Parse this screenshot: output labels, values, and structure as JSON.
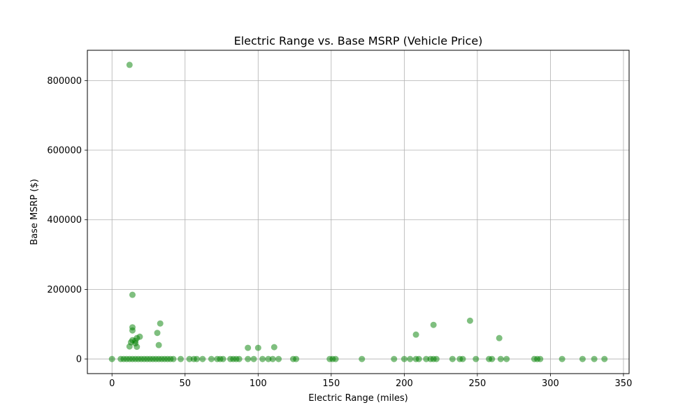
{
  "chart_data": {
    "type": "scatter",
    "title": "Electric Range vs. Base MSRP (Vehicle Price)",
    "xlabel": "Electric Range (miles)",
    "ylabel": "Base MSRP ($)",
    "xlim": [
      -16.85,
      353.85
    ],
    "ylim": [
      -42000,
      887000
    ],
    "xticks": [
      0,
      50,
      100,
      150,
      200,
      250,
      300,
      350
    ],
    "yticks": [
      0,
      200000,
      400000,
      600000,
      800000
    ],
    "grid": true,
    "legend": "none",
    "marker_color": "#008000",
    "marker_alpha": 0.5,
    "points": [
      {
        "x": 12,
        "y": 845000
      },
      {
        "x": 14,
        "y": 184400
      },
      {
        "x": 33,
        "y": 102000
      },
      {
        "x": 14,
        "y": 91000
      },
      {
        "x": 14,
        "y": 82000
      },
      {
        "x": 31,
        "y": 75000
      },
      {
        "x": 19,
        "y": 64000
      },
      {
        "x": 17,
        "y": 60000
      },
      {
        "x": 14,
        "y": 54000
      },
      {
        "x": 16,
        "y": 52000
      },
      {
        "x": 13,
        "y": 48000
      },
      {
        "x": 16,
        "y": 45000
      },
      {
        "x": 32,
        "y": 40000
      },
      {
        "x": 12,
        "y": 36000
      },
      {
        "x": 17,
        "y": 35000
      },
      {
        "x": 93,
        "y": 32000
      },
      {
        "x": 100,
        "y": 32000
      },
      {
        "x": 111,
        "y": 34000
      },
      {
        "x": 208,
        "y": 70000
      },
      {
        "x": 220,
        "y": 98000
      },
      {
        "x": 245,
        "y": 110000
      },
      {
        "x": 265,
        "y": 60000
      },
      {
        "x": 0,
        "y": 0
      },
      {
        "x": 6,
        "y": 0
      },
      {
        "x": 8,
        "y": 0
      },
      {
        "x": 10,
        "y": 0
      },
      {
        "x": 12,
        "y": 0
      },
      {
        "x": 14,
        "y": 0
      },
      {
        "x": 16,
        "y": 0
      },
      {
        "x": 18,
        "y": 0
      },
      {
        "x": 20,
        "y": 0
      },
      {
        "x": 22,
        "y": 0
      },
      {
        "x": 24,
        "y": 0
      },
      {
        "x": 26,
        "y": 0
      },
      {
        "x": 28,
        "y": 0
      },
      {
        "x": 30,
        "y": 0
      },
      {
        "x": 32,
        "y": 0
      },
      {
        "x": 34,
        "y": 0
      },
      {
        "x": 36,
        "y": 0
      },
      {
        "x": 38,
        "y": 0
      },
      {
        "x": 40,
        "y": 0
      },
      {
        "x": 42,
        "y": 0
      },
      {
        "x": 47,
        "y": 0
      },
      {
        "x": 53,
        "y": 0
      },
      {
        "x": 56,
        "y": 0
      },
      {
        "x": 58,
        "y": 0
      },
      {
        "x": 62,
        "y": 0
      },
      {
        "x": 68,
        "y": 0
      },
      {
        "x": 72,
        "y": 0
      },
      {
        "x": 74,
        "y": 0
      },
      {
        "x": 76,
        "y": 0
      },
      {
        "x": 81,
        "y": 0
      },
      {
        "x": 83,
        "y": 0
      },
      {
        "x": 85,
        "y": 0
      },
      {
        "x": 87,
        "y": 0
      },
      {
        "x": 93,
        "y": 0
      },
      {
        "x": 97,
        "y": 0
      },
      {
        "x": 103,
        "y": 0
      },
      {
        "x": 107,
        "y": 0
      },
      {
        "x": 110,
        "y": 0
      },
      {
        "x": 114,
        "y": 0
      },
      {
        "x": 124,
        "y": 0
      },
      {
        "x": 126,
        "y": 0
      },
      {
        "x": 149,
        "y": 0
      },
      {
        "x": 151,
        "y": 0
      },
      {
        "x": 153,
        "y": 0
      },
      {
        "x": 171,
        "y": 0
      },
      {
        "x": 193,
        "y": 0
      },
      {
        "x": 200,
        "y": 0
      },
      {
        "x": 204,
        "y": 0
      },
      {
        "x": 208,
        "y": 0
      },
      {
        "x": 210,
        "y": 0
      },
      {
        "x": 215,
        "y": 0
      },
      {
        "x": 218,
        "y": 0
      },
      {
        "x": 220,
        "y": 0
      },
      {
        "x": 222,
        "y": 0
      },
      {
        "x": 233,
        "y": 0
      },
      {
        "x": 238,
        "y": 0
      },
      {
        "x": 240,
        "y": 0
      },
      {
        "x": 249,
        "y": 0
      },
      {
        "x": 258,
        "y": 0
      },
      {
        "x": 260,
        "y": 0
      },
      {
        "x": 266,
        "y": 0
      },
      {
        "x": 270,
        "y": 0
      },
      {
        "x": 289,
        "y": 0
      },
      {
        "x": 291,
        "y": 0
      },
      {
        "x": 293,
        "y": 0
      },
      {
        "x": 308,
        "y": 0
      },
      {
        "x": 322,
        "y": 0
      },
      {
        "x": 330,
        "y": 0
      },
      {
        "x": 337,
        "y": 0
      }
    ]
  }
}
